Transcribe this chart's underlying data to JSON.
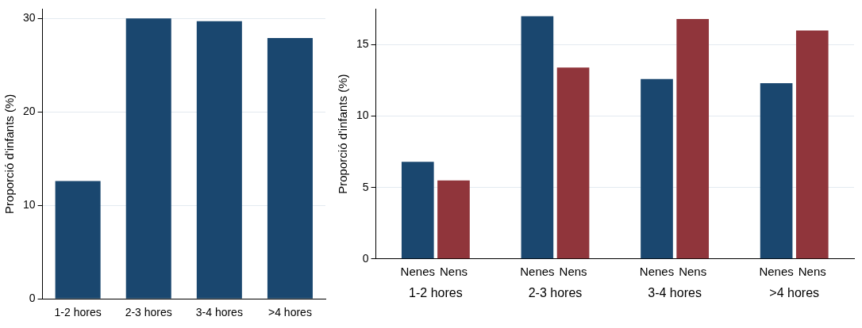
{
  "chart_data": [
    {
      "type": "bar",
      "ylabel": "Proporció d'infants (%)",
      "categories": [
        "1-2 hores",
        "2-3 hores",
        "3-4 hores",
        ">4 hores"
      ],
      "values": [
        12.6,
        30.0,
        29.7,
        27.9
      ],
      "color": "#1a476f",
      "ylim": [
        0,
        31
      ],
      "yticks": [
        0,
        10,
        20,
        30
      ],
      "grid": "y",
      "legend": false
    },
    {
      "type": "bar",
      "ylabel": "Proporció d'infants (%)",
      "categories": [
        "1-2 hores",
        "2-3 hores",
        "3-4 hores",
        ">4 hores"
      ],
      "series": [
        {
          "name": "Nenes",
          "color": "#1a476f",
          "values": [
            6.8,
            17.0,
            12.6,
            12.3
          ]
        },
        {
          "name": "Nens",
          "color": "#90353b",
          "values": [
            5.5,
            13.4,
            16.8,
            16.0
          ]
        }
      ],
      "ylim": [
        0,
        17.5
      ],
      "yticks": [
        0,
        5,
        10,
        15
      ],
      "grid": "y",
      "legend": false
    }
  ]
}
